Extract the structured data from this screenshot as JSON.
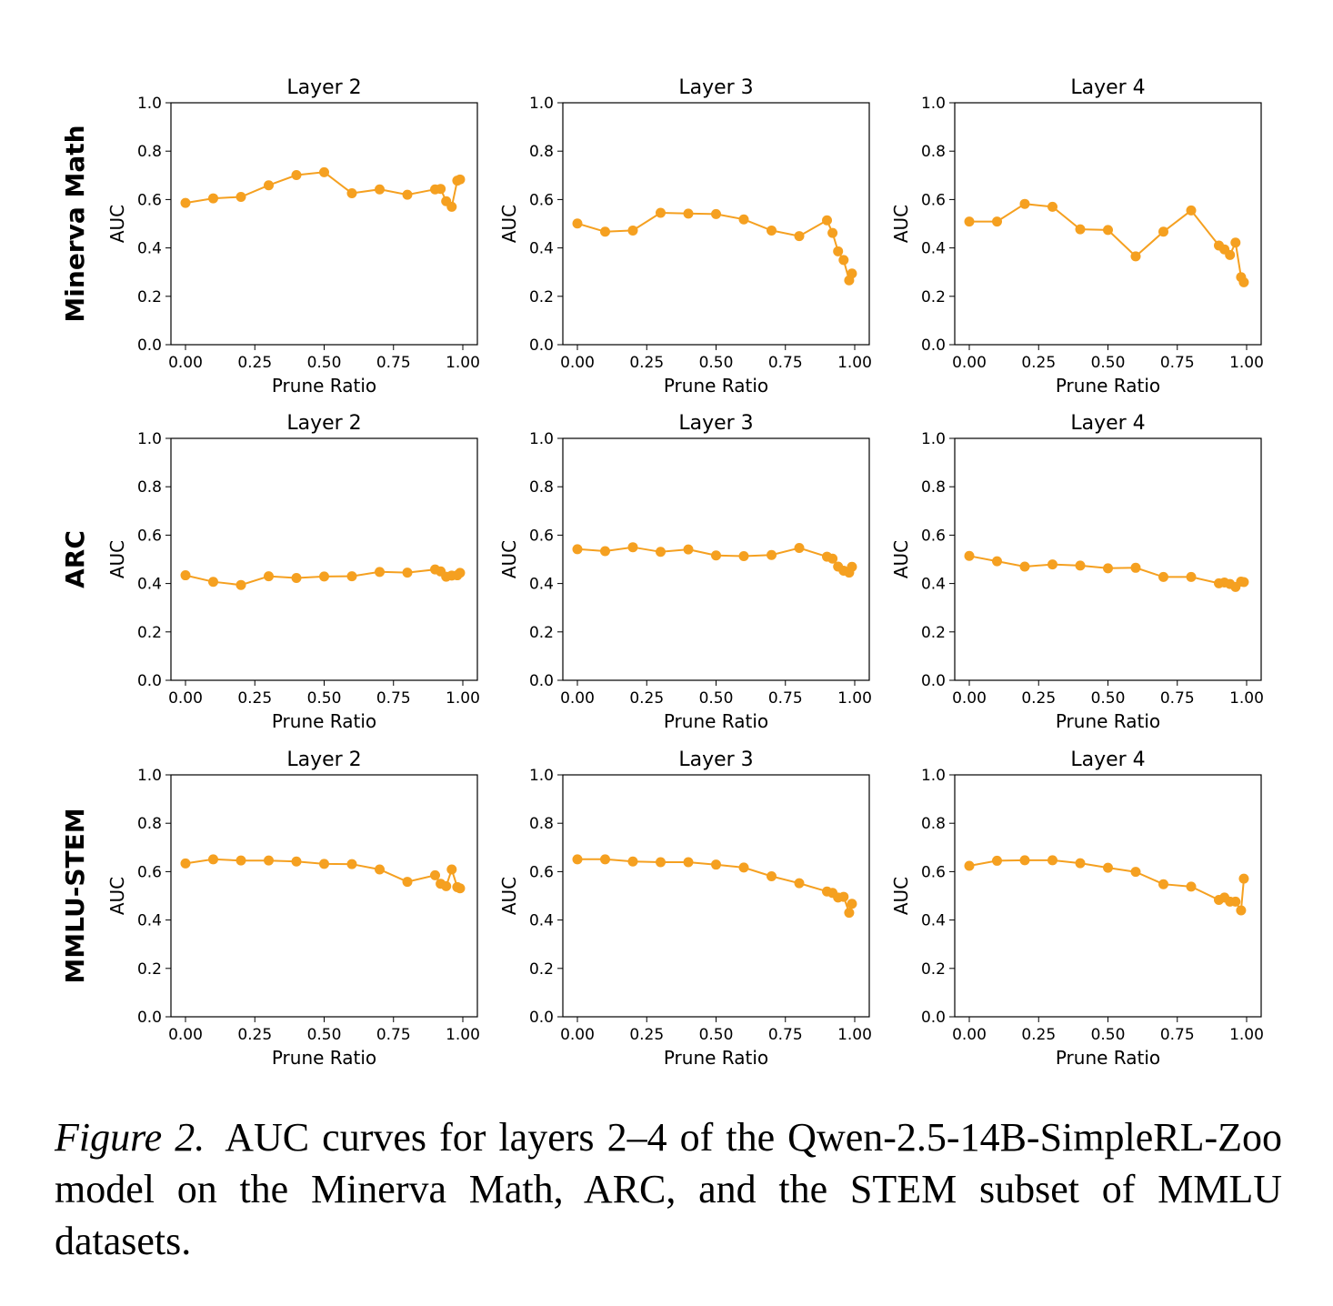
{
  "figure": {
    "caption_label": "Figure 2.",
    "caption_text": "AUC curves for layers 2–4 of the Qwen-2.5-14B-SimpleRL-Zoo model on the Minerva Math, ARC, and the STEM subset of MMLU datasets.",
    "row_labels": [
      "Minerva Math",
      "ARC",
      "MMLU-STEM"
    ],
    "line_color": "#F5A020"
  },
  "chart_data": [
    {
      "type": "line",
      "row": "Minerva Math",
      "title": "Layer 2",
      "xlabel": "Prune Ratio",
      "ylabel": "AUC",
      "xlim": [
        0,
        1
      ],
      "ylim": [
        0,
        1
      ],
      "grid": false,
      "xticks": [
        "0.00",
        "0.25",
        "0.50",
        "0.75",
        "1.00"
      ],
      "yticks": [
        "0.0",
        "0.2",
        "0.4",
        "0.6",
        "0.8",
        "1.0"
      ],
      "x": [
        0,
        0.1,
        0.2,
        0.3,
        0.4,
        0.5,
        0.6,
        0.7,
        0.8,
        0.9,
        0.92,
        0.94,
        0.96,
        0.98,
        0.99
      ],
      "y": [
        0.586,
        0.605,
        0.611,
        0.659,
        0.701,
        0.713,
        0.626,
        0.642,
        0.62,
        0.642,
        0.644,
        0.593,
        0.57,
        0.678,
        0.683
      ]
    },
    {
      "type": "line",
      "row": "Minerva Math",
      "title": "Layer 3",
      "xlabel": "Prune Ratio",
      "ylabel": "AUC",
      "xlim": [
        0,
        1
      ],
      "ylim": [
        0,
        1
      ],
      "grid": false,
      "xticks": [
        "0.00",
        "0.25",
        "0.50",
        "0.75",
        "1.00"
      ],
      "yticks": [
        "0.0",
        "0.2",
        "0.4",
        "0.6",
        "0.8",
        "1.0"
      ],
      "x": [
        0,
        0.1,
        0.2,
        0.3,
        0.4,
        0.5,
        0.6,
        0.7,
        0.8,
        0.9,
        0.92,
        0.94,
        0.96,
        0.98,
        0.99
      ],
      "y": [
        0.501,
        0.467,
        0.472,
        0.545,
        0.542,
        0.54,
        0.518,
        0.472,
        0.449,
        0.514,
        0.462,
        0.386,
        0.35,
        0.266,
        0.294
      ]
    },
    {
      "type": "line",
      "row": "Minerva Math",
      "title": "Layer 4",
      "xlabel": "Prune Ratio",
      "ylabel": "AUC",
      "xlim": [
        0,
        1
      ],
      "ylim": [
        0,
        1
      ],
      "grid": false,
      "xticks": [
        "0.00",
        "0.25",
        "0.50",
        "0.75",
        "1.00"
      ],
      "yticks": [
        "0.0",
        "0.2",
        "0.4",
        "0.6",
        "0.8",
        "1.0"
      ],
      "x": [
        0,
        0.1,
        0.2,
        0.3,
        0.4,
        0.5,
        0.6,
        0.7,
        0.8,
        0.9,
        0.92,
        0.94,
        0.96,
        0.98,
        0.99
      ],
      "y": [
        0.509,
        0.509,
        0.582,
        0.57,
        0.477,
        0.474,
        0.365,
        0.467,
        0.555,
        0.41,
        0.394,
        0.371,
        0.422,
        0.279,
        0.258
      ]
    },
    {
      "type": "line",
      "row": "ARC",
      "title": "Layer 2",
      "xlabel": "Prune Ratio",
      "ylabel": "AUC",
      "xlim": [
        0,
        1
      ],
      "ylim": [
        0,
        1
      ],
      "grid": false,
      "xticks": [
        "0.00",
        "0.25",
        "0.50",
        "0.75",
        "1.00"
      ],
      "yticks": [
        "0.0",
        "0.2",
        "0.4",
        "0.6",
        "0.8",
        "1.0"
      ],
      "x": [
        0,
        0.1,
        0.2,
        0.3,
        0.4,
        0.5,
        0.6,
        0.7,
        0.8,
        0.9,
        0.92,
        0.94,
        0.96,
        0.98,
        0.99
      ],
      "y": [
        0.434,
        0.407,
        0.394,
        0.43,
        0.423,
        0.429,
        0.43,
        0.448,
        0.445,
        0.458,
        0.45,
        0.428,
        0.433,
        0.434,
        0.444
      ]
    },
    {
      "type": "line",
      "row": "ARC",
      "title": "Layer 3",
      "xlabel": "Prune Ratio",
      "ylabel": "AUC",
      "xlim": [
        0,
        1
      ],
      "ylim": [
        0,
        1
      ],
      "grid": false,
      "xticks": [
        "0.00",
        "0.25",
        "0.50",
        "0.75",
        "1.00"
      ],
      "yticks": [
        "0.0",
        "0.2",
        "0.4",
        "0.6",
        "0.8",
        "1.0"
      ],
      "x": [
        0,
        0.1,
        0.2,
        0.3,
        0.4,
        0.5,
        0.6,
        0.7,
        0.8,
        0.9,
        0.92,
        0.94,
        0.96,
        0.98,
        0.99
      ],
      "y": [
        0.542,
        0.534,
        0.55,
        0.531,
        0.541,
        0.516,
        0.513,
        0.518,
        0.547,
        0.511,
        0.503,
        0.47,
        0.453,
        0.445,
        0.469
      ]
    },
    {
      "type": "line",
      "row": "ARC",
      "title": "Layer 4",
      "xlabel": "Prune Ratio",
      "ylabel": "AUC",
      "xlim": [
        0,
        1
      ],
      "ylim": [
        0,
        1
      ],
      "grid": false,
      "xticks": [
        "0.00",
        "0.25",
        "0.50",
        "0.75",
        "1.00"
      ],
      "yticks": [
        "0.0",
        "0.2",
        "0.4",
        "0.6",
        "0.8",
        "1.0"
      ],
      "x": [
        0,
        0.1,
        0.2,
        0.3,
        0.4,
        0.5,
        0.6,
        0.7,
        0.8,
        0.9,
        0.92,
        0.94,
        0.96,
        0.98,
        0.99
      ],
      "y": [
        0.514,
        0.492,
        0.47,
        0.479,
        0.474,
        0.463,
        0.465,
        0.427,
        0.427,
        0.401,
        0.404,
        0.398,
        0.386,
        0.408,
        0.406
      ]
    },
    {
      "type": "line",
      "row": "MMLU-STEM",
      "title": "Layer 2",
      "xlabel": "Prune Ratio",
      "ylabel": "AUC",
      "xlim": [
        0,
        1
      ],
      "ylim": [
        0,
        1
      ],
      "grid": false,
      "xticks": [
        "0.00",
        "0.25",
        "0.50",
        "0.75",
        "1.00"
      ],
      "yticks": [
        "0.0",
        "0.2",
        "0.4",
        "0.6",
        "0.8",
        "1.0"
      ],
      "x": [
        0,
        0.1,
        0.2,
        0.3,
        0.4,
        0.5,
        0.6,
        0.7,
        0.8,
        0.9,
        0.92,
        0.94,
        0.96,
        0.98,
        0.99
      ],
      "y": [
        0.634,
        0.651,
        0.646,
        0.646,
        0.642,
        0.632,
        0.631,
        0.609,
        0.558,
        0.585,
        0.55,
        0.54,
        0.609,
        0.536,
        0.531
      ]
    },
    {
      "type": "line",
      "row": "MMLU-STEM",
      "title": "Layer 3",
      "xlabel": "Prune Ratio",
      "ylabel": "AUC",
      "xlim": [
        0,
        1
      ],
      "ylim": [
        0,
        1
      ],
      "grid": false,
      "xticks": [
        "0.00",
        "0.25",
        "0.50",
        "0.75",
        "1.00"
      ],
      "yticks": [
        "0.0",
        "0.2",
        "0.4",
        "0.6",
        "0.8",
        "1.0"
      ],
      "x": [
        0,
        0.1,
        0.2,
        0.3,
        0.4,
        0.5,
        0.6,
        0.7,
        0.8,
        0.9,
        0.92,
        0.94,
        0.96,
        0.98,
        0.99
      ],
      "y": [
        0.651,
        0.651,
        0.642,
        0.639,
        0.639,
        0.629,
        0.617,
        0.581,
        0.552,
        0.518,
        0.512,
        0.493,
        0.496,
        0.43,
        0.467
      ]
    },
    {
      "type": "line",
      "row": "MMLU-STEM",
      "title": "Layer 4",
      "xlabel": "Prune Ratio",
      "ylabel": "AUC",
      "xlim": [
        0,
        1
      ],
      "ylim": [
        0,
        1
      ],
      "grid": false,
      "xticks": [
        "0.00",
        "0.25",
        "0.50",
        "0.75",
        "1.00"
      ],
      "yticks": [
        "0.0",
        "0.2",
        "0.4",
        "0.6",
        "0.8",
        "1.0"
      ],
      "x": [
        0,
        0.1,
        0.2,
        0.3,
        0.4,
        0.5,
        0.6,
        0.7,
        0.8,
        0.9,
        0.92,
        0.94,
        0.96,
        0.98,
        0.99
      ],
      "y": [
        0.624,
        0.645,
        0.647,
        0.647,
        0.635,
        0.616,
        0.599,
        0.548,
        0.538,
        0.483,
        0.493,
        0.476,
        0.476,
        0.44,
        0.571
      ]
    }
  ]
}
